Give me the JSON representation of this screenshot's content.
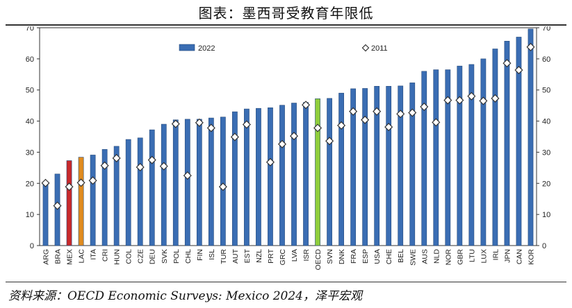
{
  "header": {
    "title": "图表：墨西哥受教育年限低"
  },
  "footer": {
    "source": "资料来源：OECD Economic Surveys: Mexico 2024，泽平宏观"
  },
  "chart_data": {
    "type": "bar",
    "categories": [
      "ARG",
      "BRA",
      "MEX",
      "LAC",
      "ITA",
      "CRI",
      "HUN",
      "COL",
      "CZE",
      "DEU",
      "SVK",
      "POL",
      "CHL",
      "FIN",
      "ISL",
      "TUR",
      "AUT",
      "EST",
      "NZL",
      "PRT",
      "GRC",
      "LVA",
      "ISR",
      "OECD",
      "SVN",
      "DNK",
      "FRA",
      "ESP",
      "USA",
      "CHE",
      "BEL",
      "SWE",
      "AUS",
      "NLD",
      "NOR",
      "GBR",
      "LTU",
      "LUX",
      "IRL",
      "JPN",
      "CAN",
      "KOR"
    ],
    "series": [
      {
        "name": "2022",
        "type": "bar",
        "values": [
          20.5,
          23,
          27.3,
          28.4,
          29.1,
          30.9,
          31.9,
          34.1,
          34.6,
          37.2,
          39,
          40.4,
          40.6,
          40.6,
          41,
          41.3,
          43,
          43.9,
          44.1,
          44.3,
          45.1,
          45.8,
          46,
          47.2,
          47.3,
          49,
          50.4,
          50.5,
          51.2,
          51.2,
          51.3,
          52.3,
          56,
          56.5,
          56.5,
          57.7,
          58.2,
          60,
          63.2,
          65.7,
          67,
          69.6
        ]
      },
      {
        "name": "2011",
        "type": "marker",
        "values": [
          20.1,
          12.8,
          18.9,
          20.2,
          20.9,
          25.7,
          28.1,
          null,
          25.2,
          27.5,
          25.5,
          39.1,
          22.5,
          39.5,
          37.8,
          18.9,
          34.9,
          38.9,
          null,
          26.8,
          32.6,
          35.2,
          45.2,
          37.8,
          33.6,
          38.6,
          43.1,
          40.4,
          43.1,
          38.1,
          42.3,
          42.7,
          44.6,
          39.6,
          46.7,
          46.7,
          48,
          46.5,
          47.3,
          58.6,
          56.4,
          63.8
        ]
      }
    ],
    "colors": {
      "bar_default": "#3a6db3",
      "bar_mex": "#c8282a",
      "bar_lac": "#e08b1e",
      "bar_oecd": "#8fcd3c",
      "marker_fill": "#ffffff",
      "marker_stroke": "#333333"
    },
    "ylim": [
      0,
      70
    ],
    "yticks": [
      0,
      10,
      20,
      30,
      40,
      50,
      60,
      70
    ],
    "xlabel": "",
    "ylabel": "",
    "legend_position": "top",
    "grid": false,
    "secondary_y_axis": true
  }
}
